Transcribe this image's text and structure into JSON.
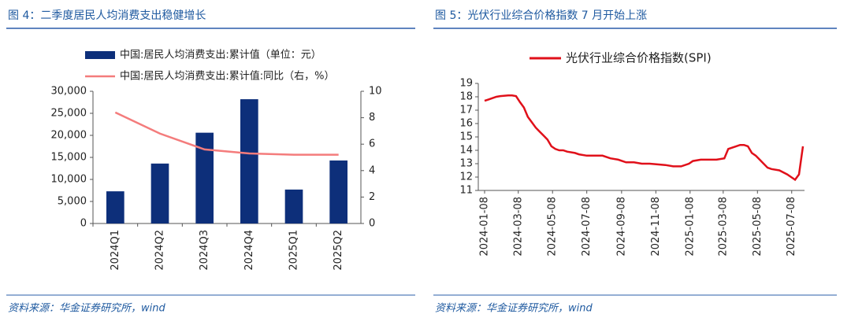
{
  "chart_data": [
    {
      "type": "bar",
      "title": "图 4：二季度居民人均消费支出稳健增长",
      "source": "资料来源：华金证券研究所，wind",
      "categories": [
        "2024Q1",
        "2024Q2",
        "2024Q3",
        "2024Q4",
        "2025Q1",
        "2025Q2"
      ],
      "series": [
        {
          "name": "中国:居民人均消费支出:累计值（单位：元）",
          "color": "#0d2f7a",
          "type": "bar",
          "values": [
            7300,
            13600,
            20600,
            28200,
            7700,
            14300
          ]
        },
        {
          "name": "中国:居民人均消费支出:累计值:同比（右，%）",
          "color": "#f47c7c",
          "type": "line",
          "axis": "y2",
          "values": [
            8.4,
            6.8,
            5.6,
            5.3,
            5.2,
            5.2
          ]
        }
      ],
      "ylim": [
        0,
        30000
      ],
      "yticks": [
        0,
        {
          "value": 5000,
          "label": "5,000"
        },
        {
          "value": 10000,
          "label": "10,000"
        },
        {
          "value": 15000,
          "label": "15,000"
        },
        {
          "value": 20000,
          "label": "20,000"
        },
        {
          "value": 25000,
          "label": "25,000"
        },
        {
          "value": 30000,
          "label": "30,000"
        }
      ],
      "y2lim": [
        0,
        10
      ],
      "y2ticks": [
        0,
        2,
        4,
        6,
        8,
        10
      ]
    },
    {
      "type": "line",
      "title": "图 5：光伏行业综合价格指数 7 月开始上涨",
      "source": "资料来源：华金证券研究所，wind",
      "x": [
        "2024-01-08",
        "2024-01-15",
        "2024-01-22",
        "2024-01-29",
        "2024-02-05",
        "2024-02-19",
        "2024-02-26",
        "2024-03-04",
        "2024-03-11",
        "2024-03-18",
        "2024-03-25",
        "2024-04-01",
        "2024-04-08",
        "2024-04-15",
        "2024-04-22",
        "2024-04-29",
        "2024-05-06",
        "2024-05-13",
        "2024-05-20",
        "2024-05-27",
        "2024-06-03",
        "2024-06-17",
        "2024-06-24",
        "2024-07-08",
        "2024-07-22",
        "2024-08-05",
        "2024-08-19",
        "2024-09-02",
        "2024-09-16",
        "2024-09-30",
        "2024-10-14",
        "2024-10-28",
        "2024-11-11",
        "2024-11-25",
        "2024-12-09",
        "2024-12-23",
        "2025-01-06",
        "2025-01-13",
        "2025-01-27",
        "2025-02-10",
        "2025-02-24",
        "2025-03-10",
        "2025-03-17",
        "2025-03-31",
        "2025-04-07",
        "2025-04-14",
        "2025-04-21",
        "2025-04-28",
        "2025-05-05",
        "2025-05-12",
        "2025-05-19",
        "2025-05-26",
        "2025-06-02",
        "2025-06-16",
        "2025-06-30",
        "2025-07-07",
        "2025-07-14",
        "2025-07-21",
        "2025-07-28"
      ],
      "series": [
        {
          "name": "光伏行业综合价格指数(SPI)",
          "color": "#e0101a",
          "values": [
            17.7,
            17.8,
            17.9,
            18.0,
            18.05,
            18.1,
            18.1,
            18.05,
            17.6,
            17.2,
            16.5,
            16.1,
            15.7,
            15.4,
            15.1,
            14.8,
            14.3,
            14.1,
            14.0,
            14.0,
            13.9,
            13.8,
            13.7,
            13.6,
            13.6,
            13.6,
            13.4,
            13.3,
            13.1,
            13.1,
            13.0,
            13.0,
            12.95,
            12.9,
            12.8,
            12.8,
            13.0,
            13.2,
            13.3,
            13.3,
            13.3,
            13.4,
            14.1,
            14.3,
            14.4,
            14.4,
            14.3,
            13.8,
            13.6,
            13.3,
            13.0,
            12.7,
            12.6,
            12.5,
            12.2,
            12.0,
            11.8,
            12.2,
            14.3
          ]
        }
      ],
      "xlim": [
        "2024-01-08",
        "2025-07-28"
      ],
      "xticks": [
        "2024-01-08",
        "2024-03-08",
        "2024-05-08",
        "2024-07-08",
        "2024-09-08",
        "2024-11-08",
        "2025-01-08",
        "2025-03-08",
        "2025-05-08",
        "2025-07-08"
      ],
      "ylim": [
        11,
        19
      ],
      "yticks": [
        11,
        12,
        13,
        14,
        15,
        16,
        17,
        18,
        19
      ]
    }
  ]
}
